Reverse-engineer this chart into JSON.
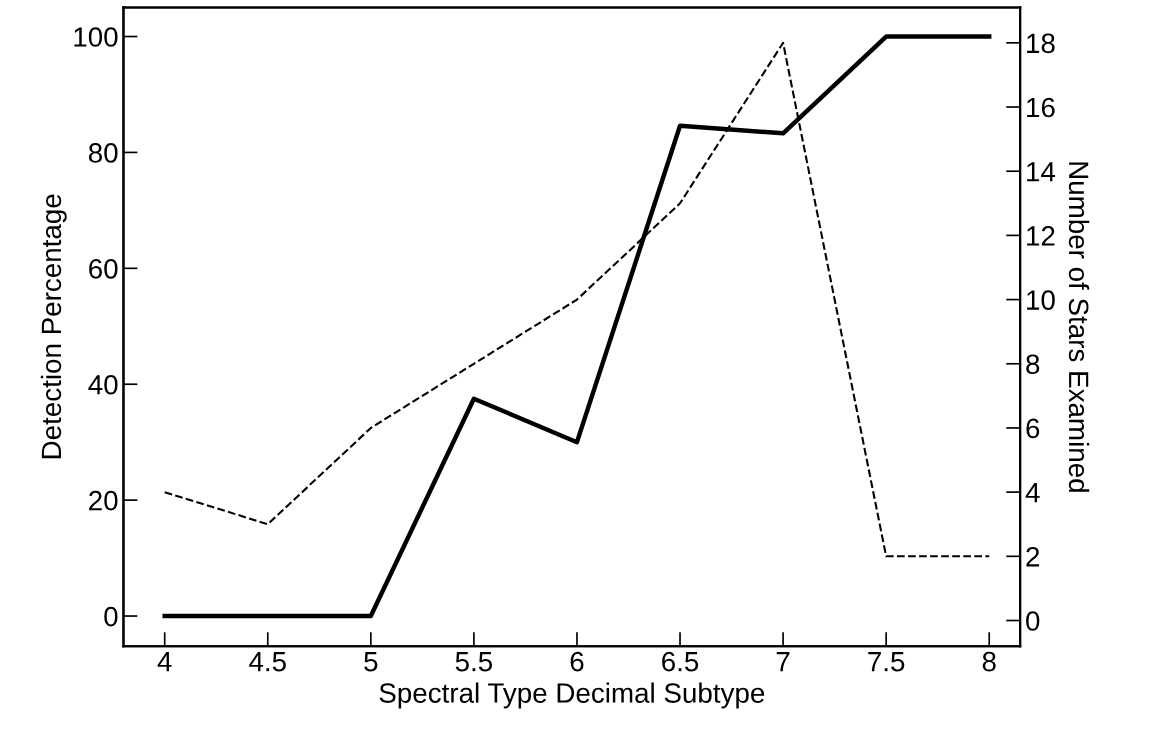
{
  "chart_data": {
    "type": "line",
    "xlabel": "Spectral Type Decimal Subtype",
    "ylabel": "Detection Percentage",
    "y2label": "Number of Stars Examined",
    "x": [
      4,
      4.5,
      5,
      5.5,
      6,
      6.5,
      7,
      7.5,
      8
    ],
    "series": [
      {
        "color": "#000000",
        "line_style": "solid",
        "values": [
          0,
          0,
          0,
          37.5,
          30,
          84.6,
          83.3,
          100,
          100
        ]
      },
      {
        "color": "#000000",
        "line_style": "dashed",
        "axis": "y2",
        "values": [
          4,
          3,
          6,
          8,
          10,
          13,
          18,
          2,
          2
        ]
      }
    ],
    "xlim": [
      3.8,
      8.15
    ],
    "xticks": [
      4,
      {
        "value": 4.5,
        "label": "4.5"
      },
      5,
      {
        "value": 5.5,
        "label": "5.5"
      },
      6,
      {
        "value": 6.5,
        "label": "6.5"
      },
      7,
      {
        "value": 7.5,
        "label": "7.5"
      },
      8
    ],
    "ylim": [
      -5.2,
      105
    ],
    "yticks": [
      0,
      20,
      40,
      60,
      80,
      100
    ],
    "y2lim": [
      -0.8,
      19.1
    ],
    "y2ticks": [
      0,
      2,
      4,
      6,
      8,
      10,
      12,
      14,
      16,
      18
    ]
  }
}
